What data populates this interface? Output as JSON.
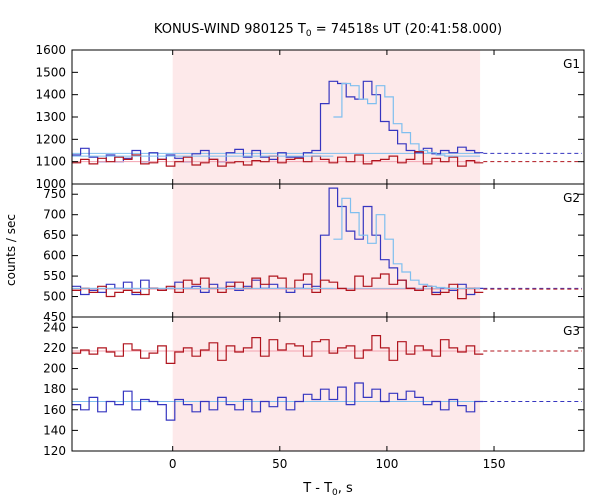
{
  "chart_data": {
    "type": "line",
    "title_main": "KONUS-WIND 980125 T",
    "title_sub": "0",
    "title_rest": " = 74518s UT (20:41:58.000)",
    "xlabel_main": "T - T",
    "xlabel_sub": "0",
    "xlabel_rest": ", s",
    "ylabel": "counts / sec",
    "x_ticks": [
      0,
      50,
      100,
      150
    ],
    "xlim": [
      -47,
      192
    ],
    "shaded_interval": [
      0,
      143.5
    ],
    "colors": {
      "upper": "#b0151e",
      "lower": "#3636c0",
      "fit": "#7fbfef",
      "upper_fit": "#f3a3b0",
      "shade": "#fde9ea"
    },
    "panels": [
      {
        "label": "G1",
        "ylim": [
          1000,
          1600
        ],
        "y_ticks": [
          1000,
          1100,
          1200,
          1300,
          1400,
          1500,
          1600
        ],
        "series": [
          {
            "role": "lower",
            "step": 4,
            "x_start": -47,
            "values": [
              1130,
              1160,
              1120,
              1100,
              1130,
              1100,
              1115,
              1150,
              1100,
              1140,
              1110,
              1130,
              1115,
              1100,
              1135,
              1150,
              1110,
              1100,
              1140,
              1155,
              1120,
              1150,
              1120,
              1110,
              1140,
              1120,
              1120,
              1140,
              1150,
              1360,
              1460,
              1450,
              1390,
              1380,
              1460,
              1400,
              1280,
              1240,
              1180,
              1150,
              1140,
              1160,
              1135,
              1150,
              1140,
              1165,
              1150,
              1140
            ],
            "dash_value": 1137
          },
          {
            "role": "upper",
            "step": 4,
            "x_start": -47,
            "values": [
              1095,
              1110,
              1090,
              1115,
              1100,
              1120,
              1110,
              1130,
              1090,
              1095,
              1110,
              1080,
              1100,
              1120,
              1085,
              1095,
              1110,
              1080,
              1095,
              1100,
              1085,
              1105,
              1100,
              1125,
              1095,
              1110,
              1115,
              1100,
              1125,
              1110,
              1095,
              1120,
              1100,
              1130,
              1090,
              1105,
              1110,
              1125,
              1095,
              1110,
              1145,
              1090,
              1115,
              1100,
              1120,
              1080,
              1105,
              1095
            ],
            "dash_value": 1100
          },
          {
            "role": "fit",
            "step": 4,
            "x_start": 75,
            "values": [
              1300,
              1450,
              1440,
              1380,
              1360,
              1440,
              1390,
              1270,
              1230,
              1180,
              1150,
              1140,
              1130,
              1125
            ],
            "base_value": 1125
          }
        ]
      },
      {
        "label": "G2",
        "ylim": [
          450,
          775
        ],
        "y_ticks": [
          450,
          500,
          550,
          600,
          650,
          700,
          750
        ],
        "series": [
          {
            "role": "lower",
            "step": 4,
            "x_start": -47,
            "values": [
              525,
              505,
              515,
              510,
              530,
              520,
              535,
              505,
              540,
              520,
              515,
              520,
              535,
              520,
              525,
              510,
              530,
              520,
              535,
              515,
              525,
              540,
              520,
              530,
              520,
              510,
              520,
              530,
              525,
              650,
              765,
              720,
              660,
              640,
              720,
              650,
              590,
              570,
              540,
              520,
              515,
              525,
              510,
              520,
              515,
              530,
              505,
              520
            ],
            "dash_value": 520
          },
          {
            "role": "upper",
            "step": 4,
            "x_start": -47,
            "values": [
              515,
              520,
              510,
              525,
              500,
              510,
              515,
              510,
              505,
              520,
              515,
              525,
              510,
              540,
              530,
              545,
              520,
              510,
              525,
              535,
              520,
              545,
              530,
              550,
              545,
              520,
              540,
              555,
              510,
              540,
              535,
              520,
              515,
              550,
              525,
              545,
              555,
              530,
              540,
              520,
              515,
              525,
              505,
              510,
              530,
              495,
              520,
              510
            ],
            "dash_value": 518
          },
          {
            "role": "fit",
            "step": 4,
            "x_start": 75,
            "values": [
              640,
              740,
              705,
              650,
              630,
              700,
              640,
              580,
              560,
              540,
              530,
              525,
              522,
              520
            ],
            "base_value": 520
          }
        ]
      },
      {
        "label": "G3",
        "ylim": [
          120,
          250
        ],
        "y_ticks": [
          120,
          140,
          160,
          180,
          200,
          220,
          240
        ],
        "series": [
          {
            "role": "upper",
            "step": 4,
            "x_start": -47,
            "values": [
              215,
              218,
              214,
              220,
              216,
              212,
              224,
              218,
              210,
              215,
              222,
              205,
              216,
              220,
              212,
              218,
              225,
              208,
              222,
              216,
              220,
              230,
              212,
              228,
              218,
              224,
              222,
              212,
              226,
              228,
              215,
              220,
              222,
              210,
              218,
              232,
              220,
              208,
              226,
              214,
              222,
              218,
              212,
              228,
              220,
              216,
              222,
              214
            ],
            "dash_value": 217
          },
          {
            "role": "lower",
            "step": 4,
            "x_start": -47,
            "values": [
              165,
              160,
              172,
              158,
              168,
              165,
              178,
              160,
              170,
              168,
              165,
              150,
              170,
              165,
              158,
              168,
              160,
              172,
              165,
              160,
              170,
              158,
              168,
              163,
              172,
              160,
              168,
              175,
              170,
              180,
              170,
              182,
              165,
              186,
              172,
              180,
              168,
              176,
              170,
              178,
              172,
              165,
              168,
              160,
              170,
              164,
              158,
              168
            ],
            "dash_value": 168
          }
        ]
      }
    ]
  }
}
